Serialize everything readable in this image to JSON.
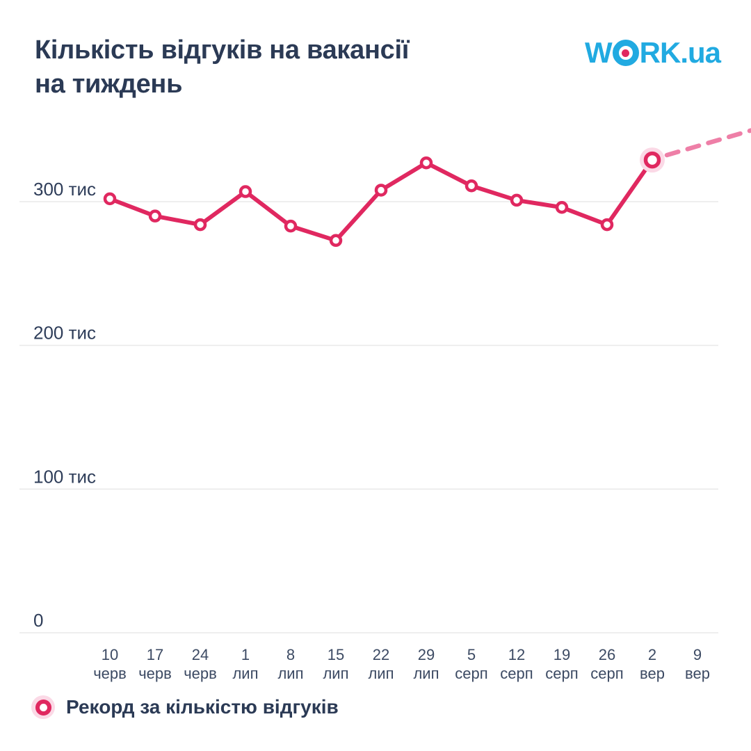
{
  "header": {
    "title_line1": "Кількість відгуків на вакансії",
    "title_line2": "на тиждень",
    "logo": {
      "w": "W",
      "rk": "RK",
      "ua": ".ua"
    }
  },
  "legend": {
    "label": "Рекорд за кількістю відгуків"
  },
  "chart_data": {
    "type": "line",
    "title": "Кількість відгуків на вакансії на тиждень",
    "unit": "тис",
    "categories": [
      "10 черв",
      "17 черв",
      "24 черв",
      "1 лип",
      "8 лип",
      "15 лип",
      "22 лип",
      "29 лип",
      "5 серп",
      "12 серп",
      "19 серп",
      "26 серп",
      "2 вер",
      "9 вер"
    ],
    "series": [
      {
        "name": "Кількість відгуків на вакансії (тис)",
        "values": [
          302,
          290,
          284,
          307,
          283,
          273,
          308,
          327,
          311,
          301,
          296,
          284,
          329
        ]
      }
    ],
    "y_ticks": [
      {
        "value": 300,
        "label": "300 тис"
      },
      {
        "value": 200,
        "label": "200 тис"
      },
      {
        "value": 100,
        "label": "100 тис"
      },
      {
        "value": 0,
        "label": "0"
      }
    ],
    "ylim": [
      0,
      350
    ],
    "grid": true,
    "legend_position": "bottom-left",
    "record": {
      "index": 12,
      "category": "2 вер",
      "label": "Рекорд за кількістю відгуків"
    },
    "projection_dashed": true,
    "colors": {
      "line": "#e02860",
      "marker_fill": "#ffffff",
      "record_halo": "#fbd9e6",
      "dashed": "#ee7fa7",
      "grid": "#e9e9e9",
      "title_text": "#2b3a55",
      "axis_text": "#3c4a63",
      "logo_blue": "#21aae1",
      "logo_dot": "#e02860"
    }
  }
}
